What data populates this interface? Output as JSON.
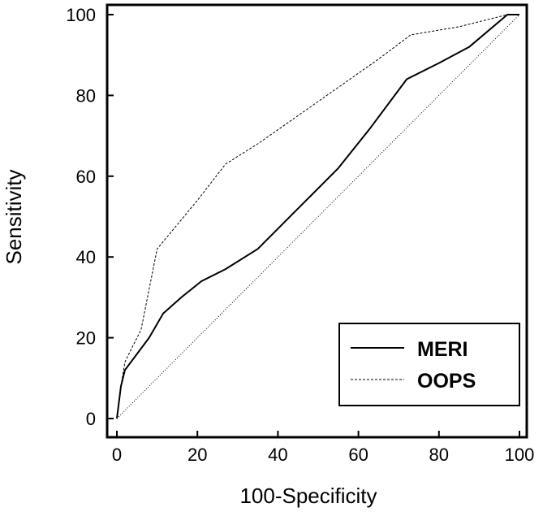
{
  "chart_data": {
    "type": "line",
    "xlabel": "100-Specificity",
    "ylabel": "Sensitivity",
    "xlim": [
      0,
      100
    ],
    "ylim": [
      0,
      100
    ],
    "x_ticks": [
      0,
      20,
      40,
      60,
      80,
      100
    ],
    "y_ticks": [
      0,
      20,
      40,
      60,
      80,
      100
    ],
    "grid": false,
    "legend_position": "bottom-right",
    "series": [
      {
        "name": "MERI",
        "style": "solid",
        "x": [
          0,
          0.5,
          1,
          2,
          5,
          8,
          11.5,
          16,
          21,
          27,
          35,
          45,
          55,
          63,
          72,
          80,
          87.5,
          97,
          100
        ],
        "y": [
          0,
          4,
          8,
          12,
          16,
          20,
          26,
          30,
          34,
          37,
          42,
          52,
          62,
          72,
          84,
          88,
          92,
          100,
          100
        ]
      },
      {
        "name": "OOPS",
        "style": "dashed",
        "x": [
          0,
          1,
          2,
          4,
          6,
          10,
          15,
          20,
          27,
          35,
          45,
          55,
          65,
          73,
          85,
          97,
          100
        ],
        "y": [
          0,
          8,
          14,
          18,
          22,
          42,
          48,
          54,
          63,
          68,
          75,
          82,
          89,
          95,
          97,
          100,
          100
        ]
      },
      {
        "name": "",
        "style": "dotted",
        "x": [
          0,
          100
        ],
        "y": [
          0,
          100
        ]
      }
    ]
  }
}
